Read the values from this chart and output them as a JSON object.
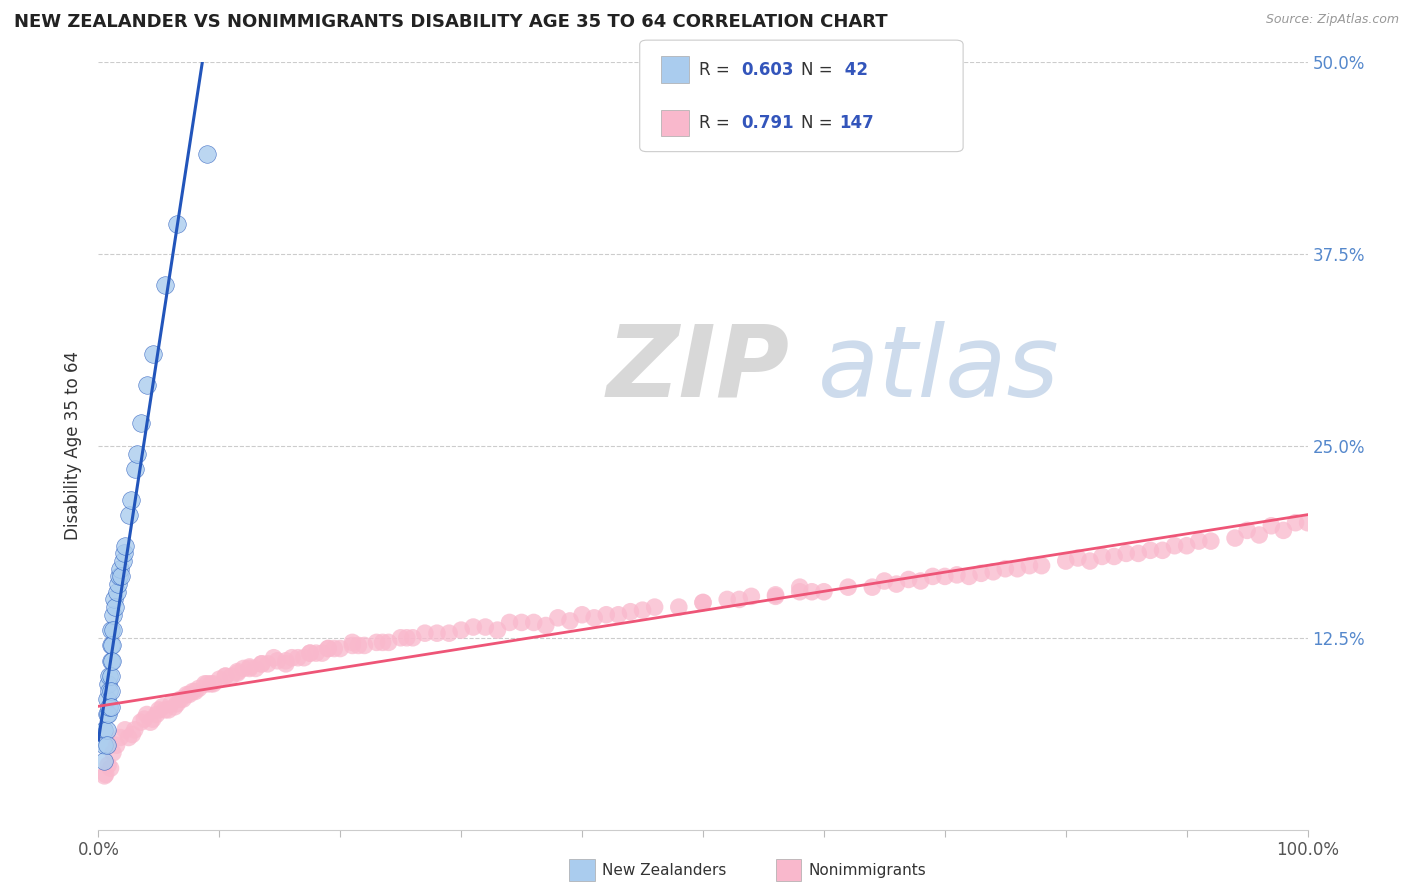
{
  "title": "NEW ZEALANDER VS NONIMMIGRANTS DISABILITY AGE 35 TO 64 CORRELATION CHART",
  "source": "Source: ZipAtlas.com",
  "ylabel_label": "Disability Age 35 to 64",
  "right_yticks": [
    "50.0%",
    "37.5%",
    "25.0%",
    "12.5%"
  ],
  "right_ytick_values": [
    0.5,
    0.375,
    0.25,
    0.125
  ],
  "color_nz": "#aaccee",
  "color_nonimm": "#f9b8cc",
  "line_color_nz": "#2255bb",
  "line_color_nonimm": "#ee5577",
  "background_color": "#ffffff",
  "grid_color": "#cccccc",
  "xlim": [
    0.0,
    1.0
  ],
  "ylim": [
    0.0,
    0.5
  ],
  "new_zealanders_x": [
    0.005,
    0.005,
    0.005,
    0.007,
    0.007,
    0.007,
    0.007,
    0.008,
    0.008,
    0.009,
    0.009,
    0.009,
    0.01,
    0.01,
    0.01,
    0.01,
    0.01,
    0.01,
    0.011,
    0.011,
    0.012,
    0.012,
    0.013,
    0.014,
    0.015,
    0.016,
    0.017,
    0.018,
    0.019,
    0.02,
    0.021,
    0.022,
    0.025,
    0.027,
    0.03,
    0.032,
    0.035,
    0.04,
    0.045,
    0.055,
    0.065,
    0.09
  ],
  "new_zealanders_y": [
    0.065,
    0.055,
    0.045,
    0.085,
    0.075,
    0.065,
    0.055,
    0.095,
    0.075,
    0.1,
    0.09,
    0.08,
    0.13,
    0.12,
    0.11,
    0.1,
    0.09,
    0.08,
    0.12,
    0.11,
    0.14,
    0.13,
    0.15,
    0.145,
    0.155,
    0.16,
    0.165,
    0.17,
    0.165,
    0.175,
    0.18,
    0.185,
    0.205,
    0.215,
    0.235,
    0.245,
    0.265,
    0.29,
    0.31,
    0.355,
    0.395,
    0.44
  ],
  "nonimmigrants_x": [
    0.005,
    0.01,
    0.018,
    0.022,
    0.025,
    0.03,
    0.035,
    0.038,
    0.04,
    0.043,
    0.048,
    0.05,
    0.053,
    0.058,
    0.06,
    0.063,
    0.068,
    0.07,
    0.073,
    0.078,
    0.08,
    0.083,
    0.088,
    0.09,
    0.093,
    0.1,
    0.105,
    0.11,
    0.115,
    0.12,
    0.125,
    0.13,
    0.135,
    0.14,
    0.148,
    0.155,
    0.16,
    0.165,
    0.17,
    0.175,
    0.18,
    0.185,
    0.19,
    0.2,
    0.21,
    0.22,
    0.23,
    0.24,
    0.25,
    0.26,
    0.27,
    0.28,
    0.3,
    0.32,
    0.34,
    0.36,
    0.38,
    0.4,
    0.42,
    0.44,
    0.46,
    0.48,
    0.5,
    0.52,
    0.54,
    0.56,
    0.58,
    0.6,
    0.62,
    0.64,
    0.66,
    0.68,
    0.7,
    0.72,
    0.74,
    0.76,
    0.78,
    0.8,
    0.82,
    0.84,
    0.86,
    0.88,
    0.9,
    0.92,
    0.94,
    0.96,
    0.98,
    1.0,
    0.155,
    0.19,
    0.31,
    0.35,
    0.075,
    0.095,
    0.21,
    0.175,
    0.5,
    0.53,
    0.56,
    0.59,
    0.45,
    0.43,
    0.41,
    0.39,
    0.37,
    0.33,
    0.29,
    0.255,
    0.235,
    0.215,
    0.195,
    0.145,
    0.135,
    0.125,
    0.115,
    0.105,
    0.065,
    0.055,
    0.045,
    0.028,
    0.015,
    0.012,
    0.008,
    0.006,
    0.58,
    0.65,
    0.67,
    0.69,
    0.71,
    0.73,
    0.75,
    0.77,
    0.81,
    0.83,
    0.85,
    0.87,
    0.89,
    0.91,
    0.95,
    0.97,
    0.99
  ],
  "nonimmigrants_y": [
    0.035,
    0.04,
    0.06,
    0.065,
    0.06,
    0.065,
    0.07,
    0.072,
    0.075,
    0.07,
    0.075,
    0.078,
    0.08,
    0.078,
    0.082,
    0.08,
    0.085,
    0.085,
    0.088,
    0.09,
    0.09,
    0.092,
    0.095,
    0.095,
    0.095,
    0.098,
    0.1,
    0.1,
    0.102,
    0.105,
    0.105,
    0.105,
    0.108,
    0.108,
    0.11,
    0.11,
    0.112,
    0.112,
    0.112,
    0.115,
    0.115,
    0.115,
    0.118,
    0.118,
    0.12,
    0.12,
    0.122,
    0.122,
    0.125,
    0.125,
    0.128,
    0.128,
    0.13,
    0.132,
    0.135,
    0.135,
    0.138,
    0.14,
    0.14,
    0.142,
    0.145,
    0.145,
    0.148,
    0.15,
    0.152,
    0.152,
    0.155,
    0.155,
    0.158,
    0.158,
    0.16,
    0.162,
    0.165,
    0.165,
    0.168,
    0.17,
    0.172,
    0.175,
    0.175,
    0.178,
    0.18,
    0.182,
    0.185,
    0.188,
    0.19,
    0.192,
    0.195,
    0.2,
    0.108,
    0.118,
    0.132,
    0.135,
    0.088,
    0.095,
    0.122,
    0.115,
    0.148,
    0.15,
    0.153,
    0.155,
    0.143,
    0.14,
    0.138,
    0.136,
    0.133,
    0.13,
    0.128,
    0.125,
    0.122,
    0.12,
    0.118,
    0.112,
    0.108,
    0.106,
    0.103,
    0.1,
    0.082,
    0.078,
    0.072,
    0.062,
    0.055,
    0.05,
    0.042,
    0.036,
    0.158,
    0.162,
    0.163,
    0.165,
    0.166,
    0.167,
    0.17,
    0.172,
    0.177,
    0.178,
    0.18,
    0.182,
    0.185,
    0.188,
    0.195,
    0.198,
    0.2
  ]
}
